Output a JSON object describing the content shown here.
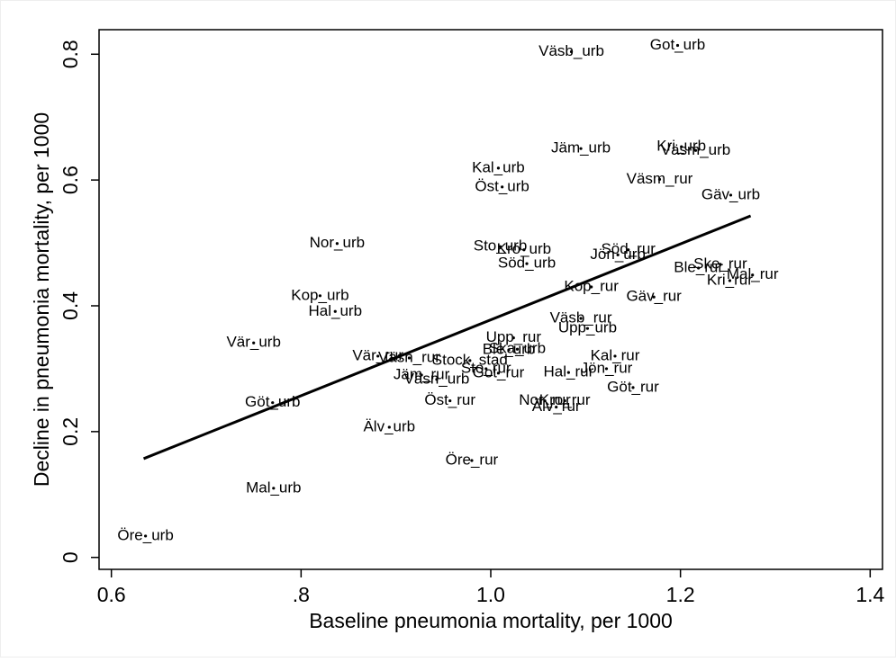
{
  "chart_data": {
    "type": "scatter",
    "xlabel": "Baseline pneumonia mortality, per 1000",
    "ylabel": "Decline in pneumonia mortality, per 1000",
    "xlim": [
      0.587,
      1.413
    ],
    "ylim": [
      -0.019,
      0.839
    ],
    "xticks": [
      0.6,
      {
        "value": 0.8,
        "label": ".8"
      },
      {
        "value": 1.0,
        "label": "1.0"
      },
      1.2,
      1.4
    ],
    "yticks": [
      0,
      0.2,
      0.4,
      0.6,
      0.8
    ],
    "color": "#000000",
    "point_labels": [
      "Väsb_urb",
      "Got_urb",
      "Jäm_urb",
      "Kri_urb",
      "Väsm_urb",
      "Kal_urb",
      "Öst_urb",
      "Väsm_rur",
      "Gäv_urb",
      "Nor_urb",
      "Sto_urb",
      "Kro_urb",
      "Söd_rur",
      "Jön_urb",
      "Söd_urb",
      "Ble_rur",
      "Ske_rur",
      "Mal_rur",
      "Kri_rur",
      "Kop_rur",
      "Gäv_rur",
      "Kop_urb",
      "Hal_urb",
      "Väsb_rur",
      "Upp_urb",
      "Vär_urb",
      "Upp_rur",
      "Ble_urb",
      "Ska_urb",
      "Vär_rur",
      "Väsn_rur",
      "Stock_stad",
      "Kal_rur",
      "Jön_rur",
      "Sto_rur",
      "Got_rur",
      "Hal_rur",
      "Jäm_rur",
      "Väsn_urb",
      "Göt_rur",
      "Göt_urb",
      "Öst_rur",
      "Nor_rur",
      "Kro_rur",
      "Älv_rur",
      "Älv_urb",
      "Öre_rur",
      "Mal_urb",
      "Öre_urb"
    ],
    "x": [
      1.085,
      1.197,
      1.095,
      1.201,
      1.216,
      1.008,
      1.012,
      1.178,
      1.253,
      0.838,
      1.01,
      1.035,
      1.145,
      1.134,
      1.038,
      1.219,
      1.242,
      1.276,
      1.252,
      1.106,
      1.172,
      0.82,
      0.836,
      1.095,
      1.102,
      0.75,
      1.024,
      1.019,
      1.028,
      0.881,
      0.914,
      0.978,
      1.131,
      1.122,
      0.995,
      1.008,
      1.082,
      0.927,
      0.943,
      1.15,
      0.77,
      0.957,
      1.057,
      1.078,
      1.069,
      0.893,
      0.98,
      0.771,
      0.636
    ],
    "values": [
      0.804,
      0.814,
      0.65,
      0.653,
      0.647,
      0.619,
      0.589,
      0.601,
      0.576,
      0.499,
      0.494,
      0.489,
      0.489,
      0.481,
      0.467,
      0.46,
      0.466,
      0.449,
      0.44,
      0.43,
      0.414,
      0.416,
      0.391,
      0.38,
      0.364,
      0.341,
      0.349,
      0.33,
      0.331,
      0.32,
      0.317,
      0.313,
      0.32,
      0.3,
      0.3,
      0.293,
      0.294,
      0.29,
      0.283,
      0.27,
      0.246,
      0.249,
      0.249,
      0.249,
      0.239,
      0.207,
      0.154,
      0.11,
      0.034
    ],
    "fit_line": {
      "x": [
        0.634,
        1.274
      ],
      "values": [
        0.157,
        0.543
      ]
    }
  }
}
